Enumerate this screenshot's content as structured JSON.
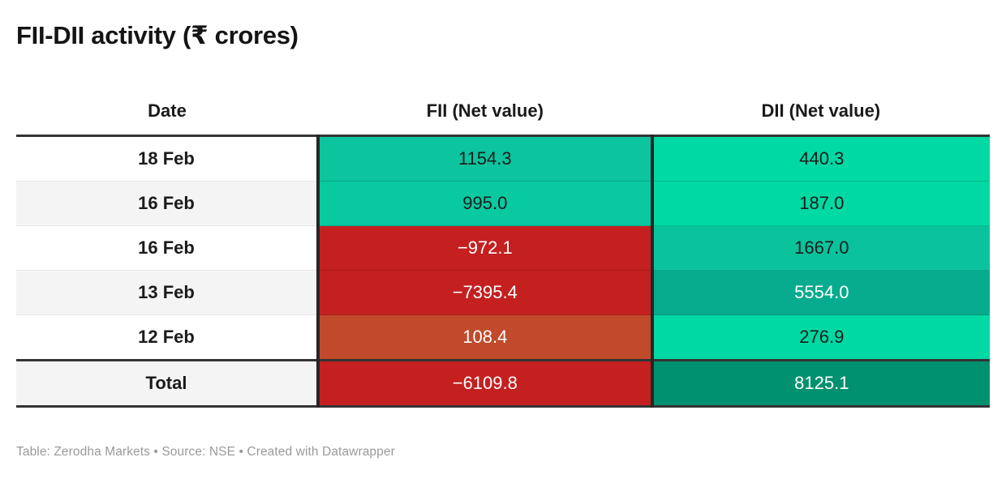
{
  "title": "FII-DII activity (₹ crores)",
  "footer": "Table: Zerodha Markets • Source: NSE • Created with Datawrapper",
  "colors": {
    "positive_bright": "#00d9a3",
    "positive_mid": "#0cc49e",
    "positive_dark": "#07ab8d",
    "positive_darkest": "#00916f",
    "negative_red": "#c42020",
    "negative_orange": "#c04a2b",
    "border_dark": "#333333",
    "text_dark": "#1b1b1b",
    "text_light": "#ffffff"
  },
  "table": {
    "header": {
      "date": "Date",
      "fii": "FII (Net value)",
      "dii": "DII (Net value)"
    },
    "rows": [
      {
        "date": "18 Feb",
        "row_bg": "#ffffff",
        "fii": {
          "text": "1154.3",
          "bg": "#0cc49e",
          "fg": "#1b1b1b"
        },
        "dii": {
          "text": "440.3",
          "bg": "#00d9a3",
          "fg": "#1b1b1b"
        }
      },
      {
        "date": "16 Feb",
        "row_bg": "#f4f4f4",
        "fii": {
          "text": "995.0",
          "bg": "#08c9a0",
          "fg": "#1b1b1b"
        },
        "dii": {
          "text": "187.0",
          "bg": "#00d9a3",
          "fg": "#1b1b1b"
        }
      },
      {
        "date": "16 Feb",
        "row_bg": "#ffffff",
        "fii": {
          "text": "−972.1",
          "bg": "#c42020",
          "fg": "#ffffff"
        },
        "dii": {
          "text": "1667.0",
          "bg": "#0ac39d",
          "fg": "#1b1b1b"
        }
      },
      {
        "date": "13 Feb",
        "row_bg": "#f4f4f4",
        "fii": {
          "text": "−7395.4",
          "bg": "#c42020",
          "fg": "#ffffff"
        },
        "dii": {
          "text": "5554.0",
          "bg": "#07ab8d",
          "fg": "#ffffff"
        }
      },
      {
        "date": "12 Feb",
        "row_bg": "#ffffff",
        "fii": {
          "text": "108.4",
          "bg": "#c04a2b",
          "fg": "#ffffff"
        },
        "dii": {
          "text": "276.9",
          "bg": "#00d9a4",
          "fg": "#1b1b1b"
        }
      }
    ],
    "total": {
      "date": "Total",
      "row_bg": "#f4f4f4",
      "fii": {
        "text": "−6109.8",
        "bg": "#c42020",
        "fg": "#ffffff"
      },
      "dii": {
        "text": "8125.1",
        "bg": "#00916f",
        "fg": "#ffffff"
      }
    }
  },
  "chart_data": {
    "type": "table",
    "title": "FII-DII activity (₹ crores)",
    "columns": [
      "Date",
      "FII (Net value)",
      "DII (Net value)"
    ],
    "rows": [
      [
        "18 Feb",
        1154.3,
        440.3
      ],
      [
        "16 Feb",
        995.0,
        187.0
      ],
      [
        "16 Feb",
        -972.1,
        1667.0
      ],
      [
        "13 Feb",
        -7395.4,
        5554.0
      ],
      [
        "12 Feb",
        108.4,
        276.9
      ],
      [
        "Total",
        -6109.8,
        8125.1
      ]
    ],
    "heatmap": "cell background encodes value: red = negative, bright green = small positive, dark green = large positive",
    "source": "NSE",
    "credit": "Table: Zerodha Markets"
  }
}
